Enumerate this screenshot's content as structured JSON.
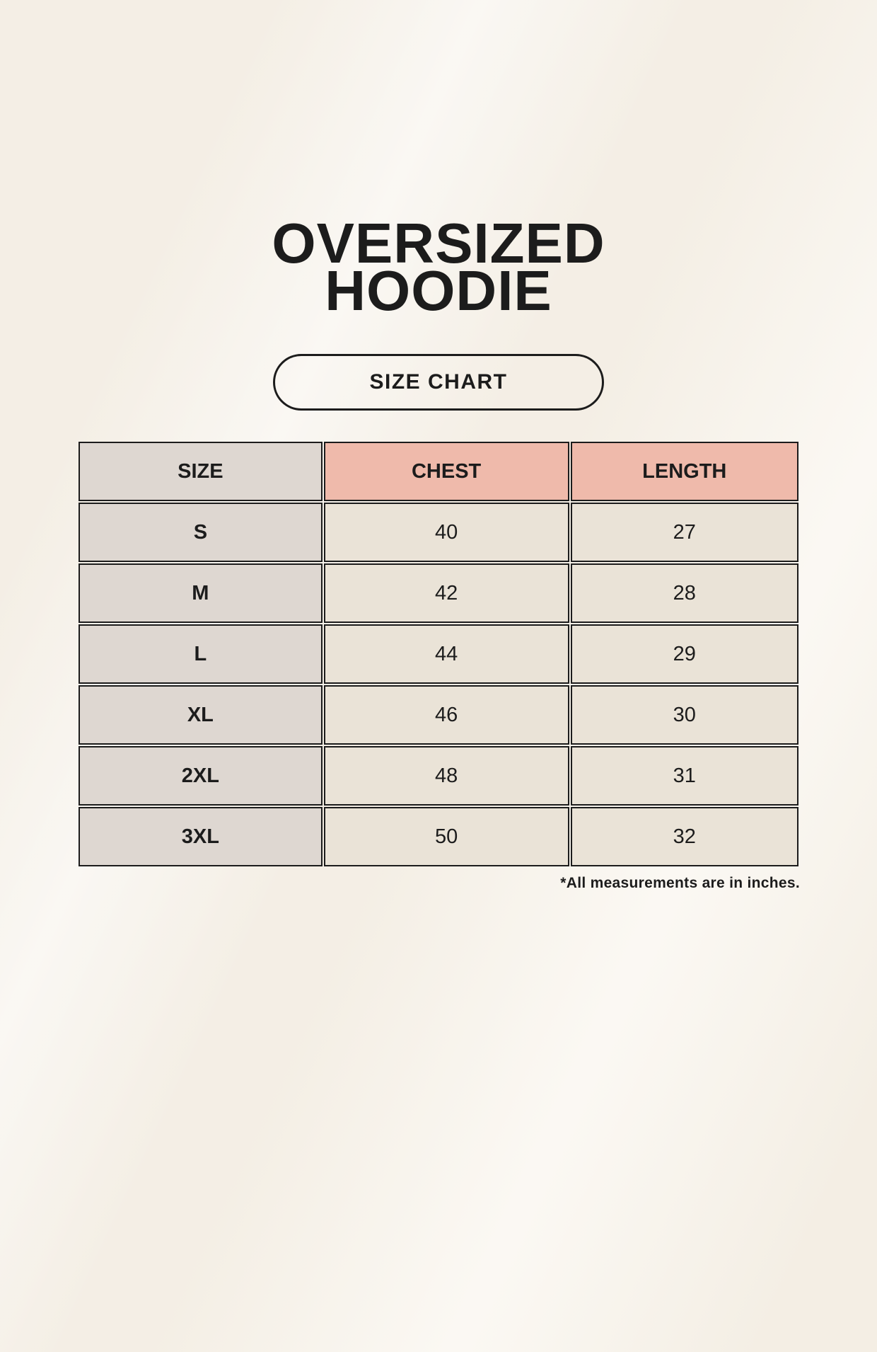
{
  "header": {
    "title_line1": "OVERSIZED",
    "title_line2": "HOODIE",
    "size_chart_label": "SIZE CHART"
  },
  "footnote": {
    "text": "*All measurements are in inches."
  },
  "colors": {
    "page_background": "#f8f3ea",
    "text": "#1c1c1c",
    "table_border": "#1c1c1c",
    "size_column_background": "#ded7d1",
    "accent_header_background": "#efbaab",
    "value_cell_background": "#eae3d7"
  },
  "chart_data": {
    "type": "table",
    "title": "OVERSIZED HOODIE",
    "subtitle": "SIZE CHART",
    "columns": [
      "SIZE",
      "CHEST",
      "LENGTH"
    ],
    "rows": [
      {
        "size": "S",
        "chest": "40",
        "length": "27"
      },
      {
        "size": "M",
        "chest": "42",
        "length": "28"
      },
      {
        "size": "L",
        "chest": "44",
        "length": "29"
      },
      {
        "size": "XL",
        "chest": "46",
        "length": "30"
      },
      {
        "size": "2XL",
        "chest": "48",
        "length": "31"
      },
      {
        "size": "3XL",
        "chest": "50",
        "length": "32"
      }
    ],
    "units": "inches",
    "note": "*All measurements are in inches."
  }
}
